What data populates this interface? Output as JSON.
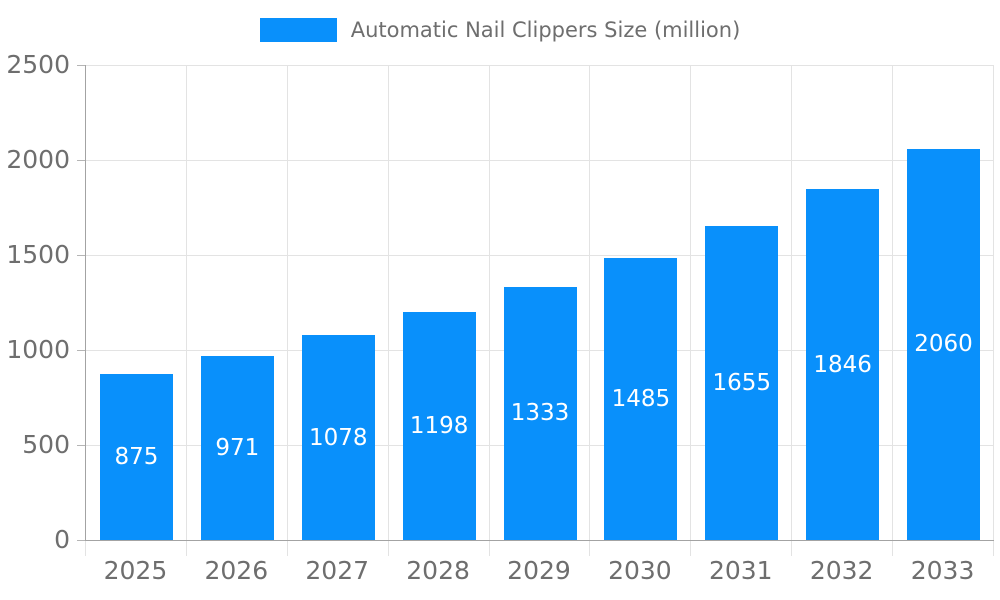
{
  "chart_data": {
    "type": "bar",
    "title": "",
    "legend_label": "Automatic Nail Clippers Size (million)",
    "legend_position": "top",
    "categories": [
      "2025",
      "2026",
      "2027",
      "2028",
      "2029",
      "2030",
      "2031",
      "2032",
      "2033"
    ],
    "values": [
      875,
      971,
      1078,
      1198,
      1333,
      1485,
      1655,
      1846,
      2060
    ],
    "xlabel": "",
    "ylabel": "",
    "ylim": [
      0,
      2500
    ],
    "y_ticks": [
      0,
      500,
      1000,
      1500,
      2000,
      2500
    ],
    "grid": true,
    "colors": {
      "bar": "#0990fb",
      "grid": "#e3e3e3",
      "axis": "#a3a3a3",
      "tick": "#b5b5b5",
      "text": "#6e6e6e",
      "value_label": "#ffffff",
      "background": "#ffffff"
    }
  }
}
